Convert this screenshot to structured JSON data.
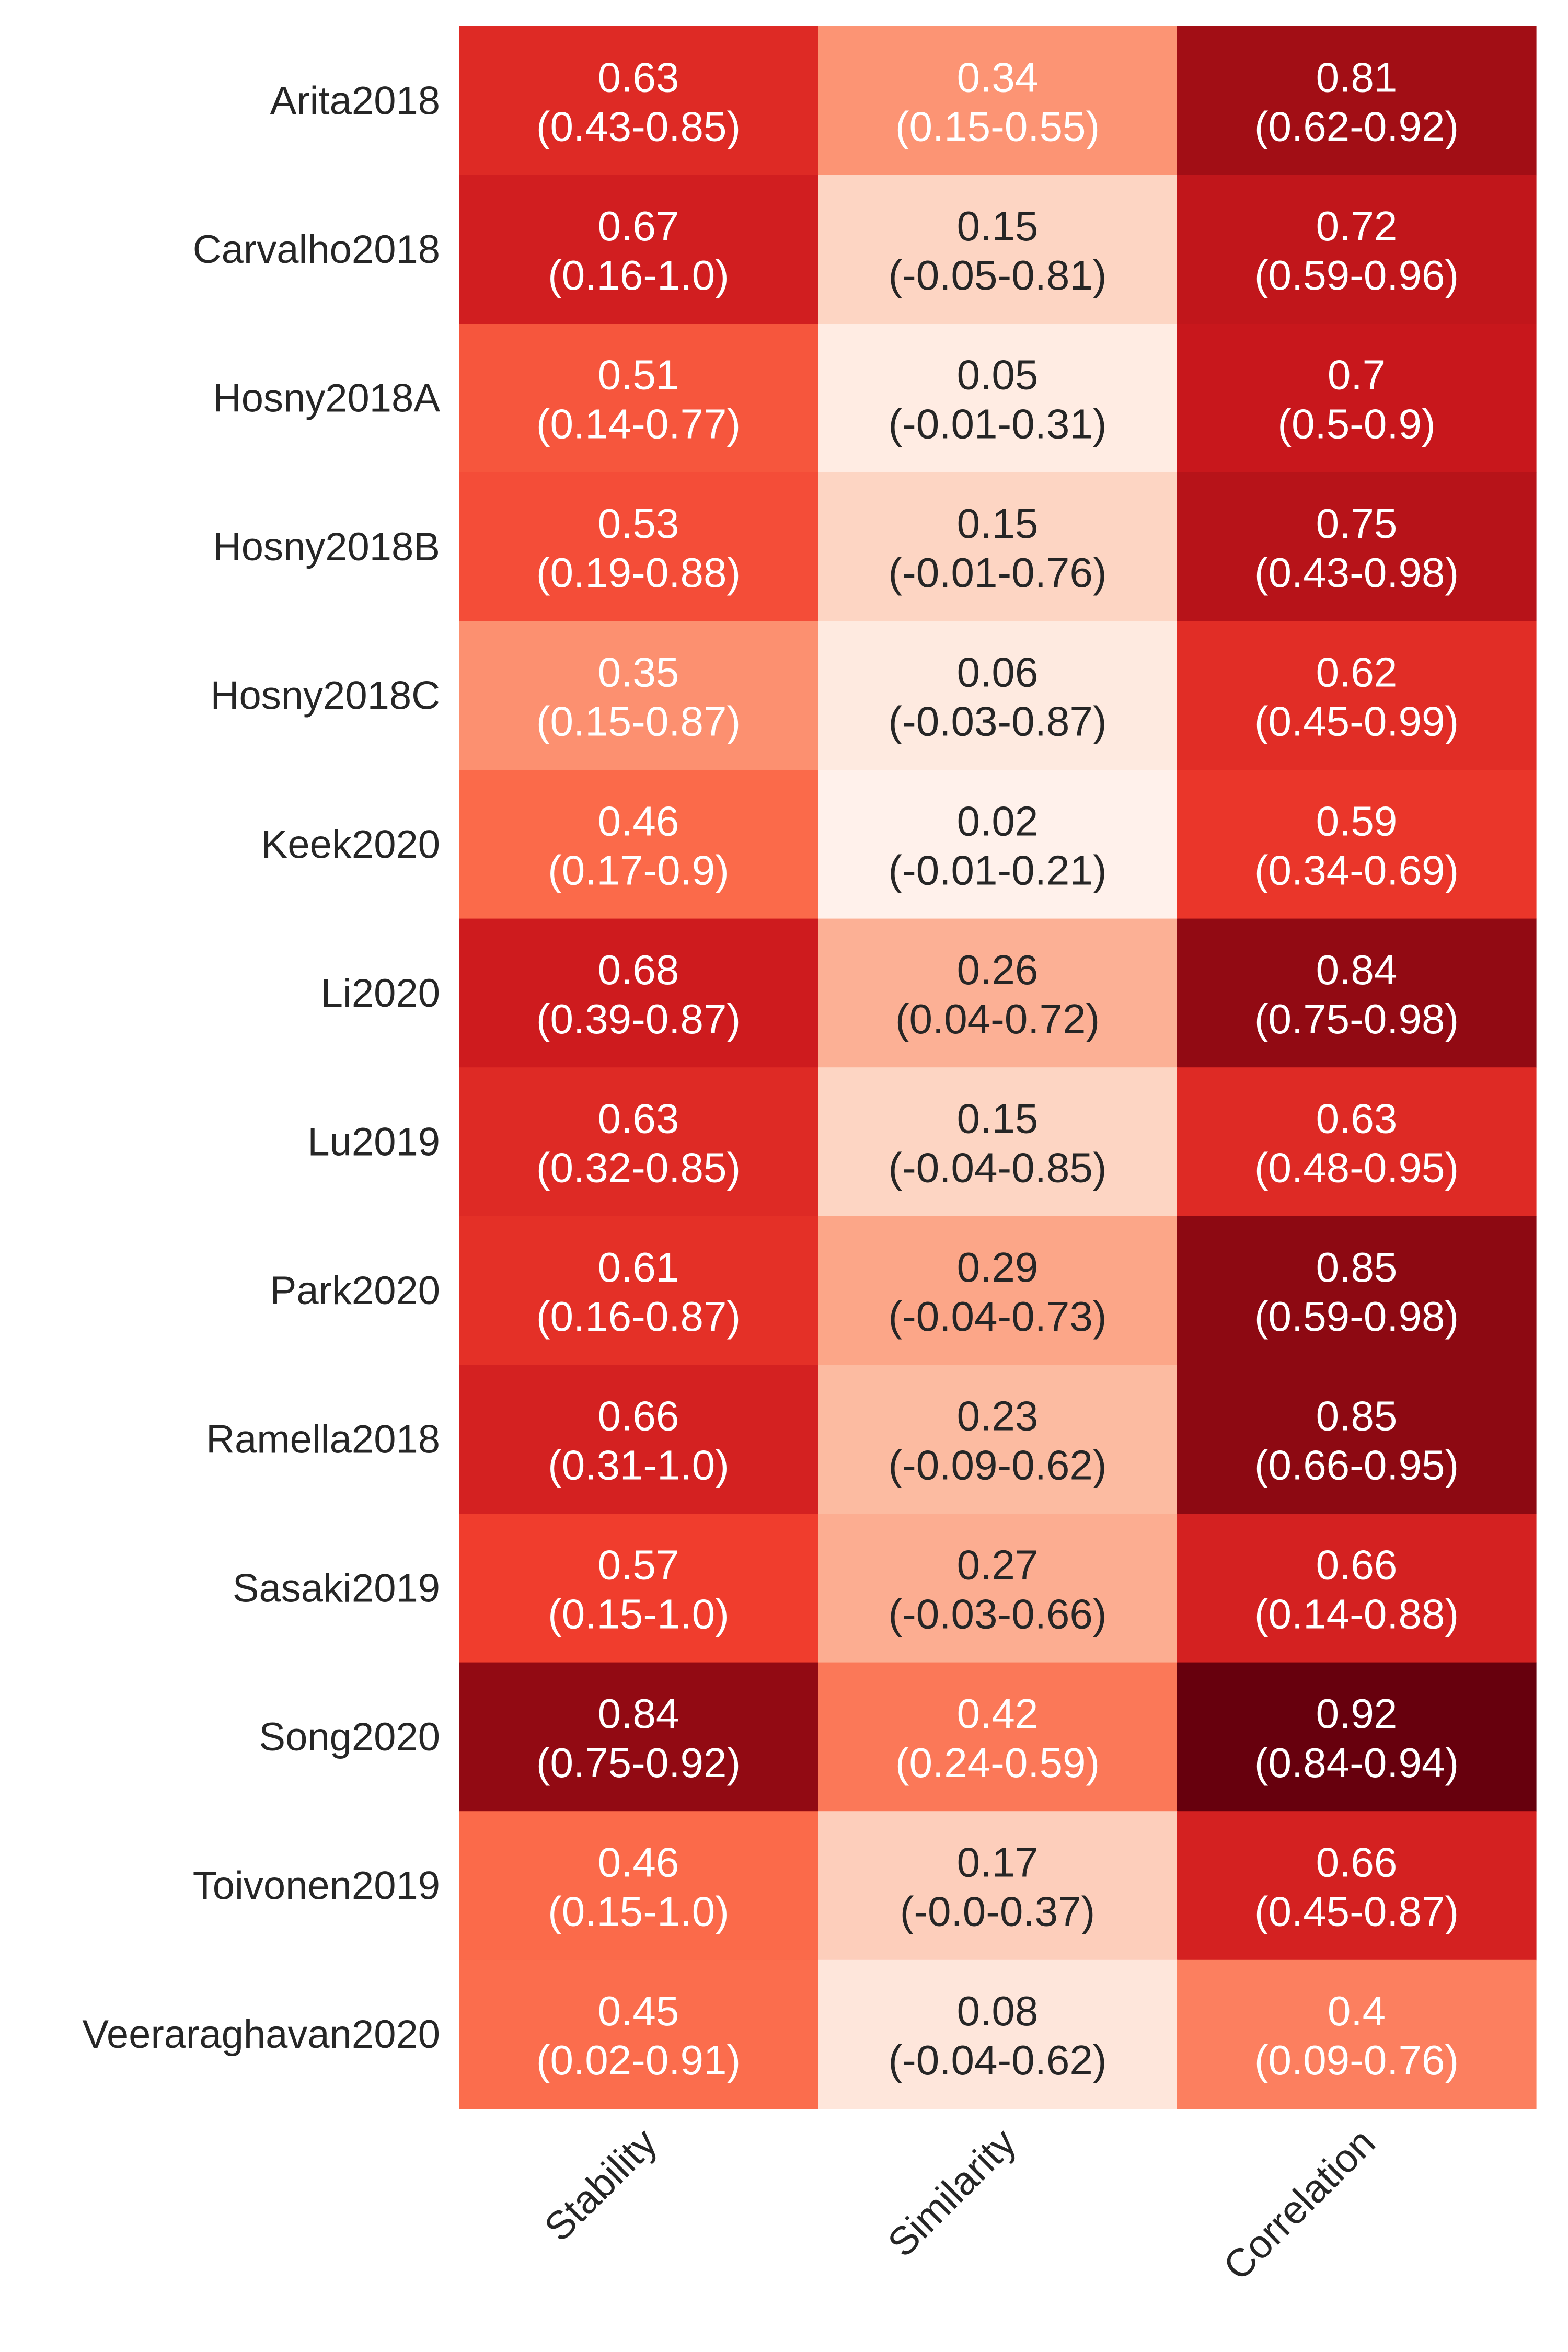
{
  "chart_data": {
    "type": "heatmap",
    "colormap": "Reds",
    "value_range": [
      0.0,
      0.92
    ],
    "rows": [
      "Arita2018",
      "Carvalho2018",
      "Hosny2018A",
      "Hosny2018B",
      "Hosny2018C",
      "Keek2020",
      "Li2020",
      "Lu2019",
      "Park2020",
      "Ramella2018",
      "Sasaki2019",
      "Song2020",
      "Toivonen2019",
      "Veeraraghavan2020"
    ],
    "columns": [
      "Stability",
      "Similarity",
      "Correlation"
    ],
    "values": [
      [
        0.63,
        0.34,
        0.81
      ],
      [
        0.67,
        0.15,
        0.72
      ],
      [
        0.51,
        0.05,
        0.7
      ],
      [
        0.53,
        0.15,
        0.75
      ],
      [
        0.35,
        0.06,
        0.62
      ],
      [
        0.46,
        0.02,
        0.59
      ],
      [
        0.68,
        0.26,
        0.84
      ],
      [
        0.63,
        0.15,
        0.63
      ],
      [
        0.61,
        0.29,
        0.85
      ],
      [
        0.66,
        0.23,
        0.85
      ],
      [
        0.57,
        0.27,
        0.66
      ],
      [
        0.84,
        0.42,
        0.92
      ],
      [
        0.46,
        0.17,
        0.66
      ],
      [
        0.45,
        0.08,
        0.4
      ]
    ],
    "annotations": [
      [
        [
          "0.63",
          "(0.43-0.85)"
        ],
        [
          "0.34",
          "(0.15-0.55)"
        ],
        [
          "0.81",
          "(0.62-0.92)"
        ]
      ],
      [
        [
          "0.67",
          "(0.16-1.0)"
        ],
        [
          "0.15",
          "(-0.05-0.81)"
        ],
        [
          "0.72",
          "(0.59-0.96)"
        ]
      ],
      [
        [
          "0.51",
          "(0.14-0.77)"
        ],
        [
          "0.05",
          "(-0.01-0.31)"
        ],
        [
          "0.7",
          "(0.5-0.9)"
        ]
      ],
      [
        [
          "0.53",
          "(0.19-0.88)"
        ],
        [
          "0.15",
          "(-0.01-0.76)"
        ],
        [
          "0.75",
          "(0.43-0.98)"
        ]
      ],
      [
        [
          "0.35",
          "(0.15-0.87)"
        ],
        [
          "0.06",
          "(-0.03-0.87)"
        ],
        [
          "0.62",
          "(0.45-0.99)"
        ]
      ],
      [
        [
          "0.46",
          "(0.17-0.9)"
        ],
        [
          "0.02",
          "(-0.01-0.21)"
        ],
        [
          "0.59",
          "(0.34-0.69)"
        ]
      ],
      [
        [
          "0.68",
          "(0.39-0.87)"
        ],
        [
          "0.26",
          "(0.04-0.72)"
        ],
        [
          "0.84",
          "(0.75-0.98)"
        ]
      ],
      [
        [
          "0.63",
          "(0.32-0.85)"
        ],
        [
          "0.15",
          "(-0.04-0.85)"
        ],
        [
          "0.63",
          "(0.48-0.95)"
        ]
      ],
      [
        [
          "0.61",
          "(0.16-0.87)"
        ],
        [
          "0.29",
          "(-0.04-0.73)"
        ],
        [
          "0.85",
          "(0.59-0.98)"
        ]
      ],
      [
        [
          "0.66",
          "(0.31-1.0)"
        ],
        [
          "0.23",
          "(-0.09-0.62)"
        ],
        [
          "0.85",
          "(0.66-0.95)"
        ]
      ],
      [
        [
          "0.57",
          "(0.15-1.0)"
        ],
        [
          "0.27",
          "(-0.03-0.66)"
        ],
        [
          "0.66",
          "(0.14-0.88)"
        ]
      ],
      [
        [
          "0.84",
          "(0.75-0.92)"
        ],
        [
          "0.42",
          "(0.24-0.59)"
        ],
        [
          "0.92",
          "(0.84-0.94)"
        ]
      ],
      [
        [
          "0.46",
          "(0.15-1.0)"
        ],
        [
          "0.17",
          "(-0.0-0.37)"
        ],
        [
          "0.66",
          "(0.45-0.87)"
        ]
      ],
      [
        [
          "0.45",
          "(0.02-0.91)"
        ],
        [
          "0.08",
          "(-0.04-0.62)"
        ],
        [
          "0.4",
          "(0.09-0.76)"
        ]
      ]
    ],
    "title": "",
    "xlabel": "",
    "ylabel": "",
    "grid": false,
    "colorbar": false
  }
}
